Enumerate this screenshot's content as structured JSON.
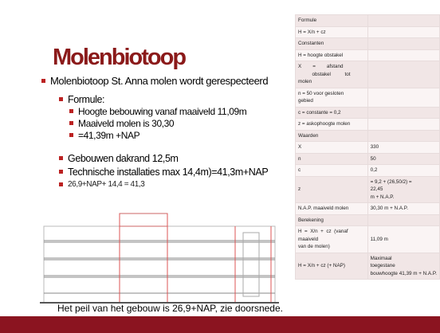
{
  "slide": {
    "title": "Molenbiotoop",
    "bullets": [
      {
        "level": 1,
        "text": "Molenbiotoop St. Anna molen wordt gerespecteerd"
      },
      {
        "level": 2,
        "text": "Formule:"
      },
      {
        "level": 3,
        "text": "Hoogte bebouwing vanaf maaiveld 11,09m"
      },
      {
        "level": 3,
        "text": "Maaiveld molen is 30,30"
      },
      {
        "level": 3,
        "text": "=41,39m +NAP"
      },
      {
        "level": 2,
        "text": "Gebouwen dakrand 12,5m"
      },
      {
        "level": 2,
        "text": "Technische installaties max 14,4m)=41,3m+NAP"
      },
      {
        "level": 4,
        "text": "26,9+NAP+ 14,4 = 41,3"
      }
    ],
    "caption": "Het peil van het gebouw is 26,9+NAP, zie doorsnede."
  },
  "table": {
    "rows": [
      [
        [
          "Formule"
        ]
      ],
      [
        [
          "H = X/n + cz"
        ]
      ],
      [
        [
          "Constanten"
        ]
      ],
      [
        [
          "H = hoogte obstakel"
        ]
      ],
      [
        [
          "X        =        afstand",
          "          obstakel          tot",
          "molen"
        ]
      ],
      [
        [
          "n = 50 voor gesloten",
          "gebied"
        ]
      ],
      [
        [
          "c = constante = 0,2"
        ]
      ],
      [
        [
          "z = askophoogte molen"
        ]
      ],
      [
        [
          "Waarden"
        ]
      ],
      [
        [
          "X"
        ],
        [
          "330"
        ]
      ],
      [
        [
          "n"
        ],
        [
          "50"
        ]
      ],
      [
        [
          "c"
        ],
        [
          "0,2"
        ]
      ],
      [
        [
          "z"
        ],
        [
          "= 9,2 + (26,50/2) =",
          "22,45",
          "m + N.A.P."
        ]
      ],
      [
        [
          "N.A.P. maaiveld molen"
        ],
        [
          "30,30 m + N.A.P."
        ]
      ],
      [
        [
          "Berekening"
        ]
      ],
      [
        [
          "H  =  X/n  +  cz  (vanaf",
          "maaiveld",
          "van de molen)"
        ],
        [
          "11,09 m"
        ]
      ],
      [
        [
          "H = X/n + cz (+ NAP)"
        ],
        [
          "Maximaal",
          "toegestane",
          "bouwhoogte 41,39 m + N.A.P."
        ]
      ]
    ]
  }
}
